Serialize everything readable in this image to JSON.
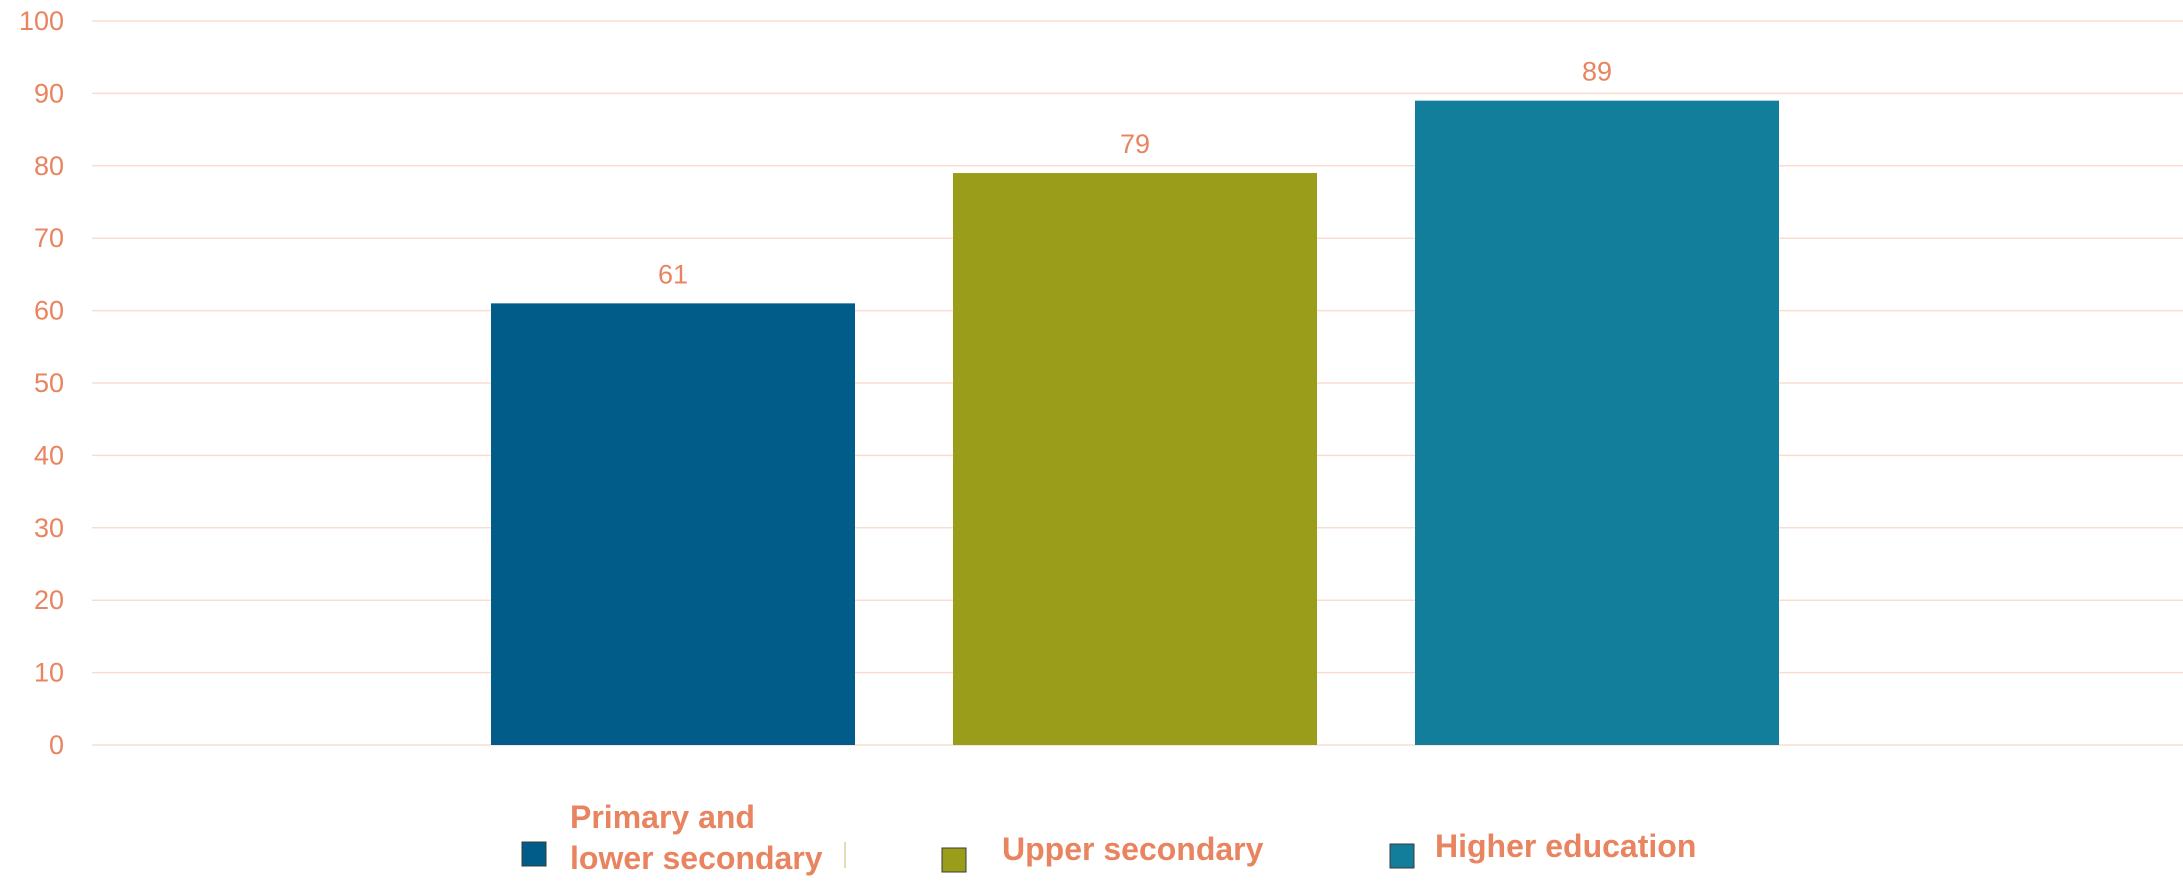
{
  "chart_data": {
    "type": "bar",
    "categories": [
      "Primary and lower secondary",
      "Upper secondary",
      "Higher education"
    ],
    "values": [
      61,
      79,
      89
    ],
    "data_labels": [
      "61",
      "79",
      "89"
    ],
    "ylim": [
      0,
      100
    ],
    "yticks": [
      0,
      10,
      20,
      30,
      40,
      50,
      60,
      70,
      80,
      90,
      100
    ],
    "ytick_labels": [
      "0",
      "10",
      "20",
      "30",
      "40",
      "50",
      "60",
      "70",
      "80",
      "90",
      "100"
    ],
    "title": "",
    "xlabel": "",
    "ylabel": "",
    "grid": true,
    "legend_position": "bottom",
    "legend": [
      {
        "label_lines": [
          "Primary and",
          "lower secondary"
        ],
        "color": "#015C8A"
      },
      {
        "label_lines": [
          "Upper secondary"
        ],
        "color": "#999D1A"
      },
      {
        "label_lines": [
          "Higher education"
        ],
        "color": "#127E9B"
      }
    ],
    "colors": {
      "bars": [
        "#015C8A",
        "#999D1A",
        "#127E9B"
      ],
      "text": "#E8845F",
      "gridline": "#FADDD0"
    }
  }
}
